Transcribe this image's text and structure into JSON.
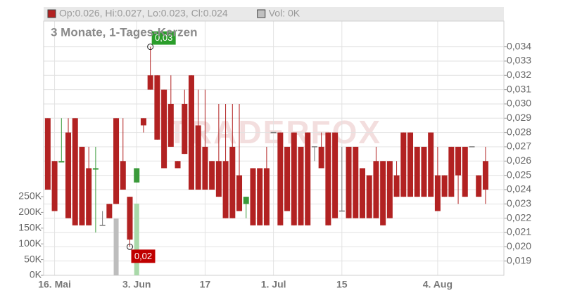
{
  "chart_data": {
    "type": "candlestick",
    "title": "3 Monate, 1-Tages-Kerzen",
    "watermark": "TRADERFOX",
    "legend": [
      {
        "label": "Op:0.026, Hi:0.027, Lo:0.023, Cl:0.024",
        "color": "#b22222"
      },
      {
        "label": "Vol: 0K",
        "color": "#c0c0c0"
      }
    ],
    "up_color": "#3a9a3a",
    "down_color": "#b22222",
    "flat_color": "#777777",
    "volume_up_color": "#a9d9a9",
    "volume_down_color": "#bdbdbd",
    "categories": [
      null,
      "16. Mai",
      null,
      null,
      null,
      null,
      null,
      null,
      null,
      null,
      null,
      null,
      null,
      "3. Jun",
      null,
      null,
      null,
      null,
      null,
      null,
      null,
      null,
      null,
      "17",
      null,
      null,
      null,
      null,
      null,
      null,
      null,
      null,
      null,
      "1. Jul",
      null,
      null,
      null,
      null,
      null,
      null,
      null,
      null,
      null,
      "15",
      null,
      null,
      null,
      null,
      null,
      null,
      null,
      null,
      null,
      null,
      null,
      null,
      null,
      "4. Aug",
      null,
      null,
      null,
      null,
      null,
      null,
      null
    ],
    "open": [
      0.029,
      0.026,
      0.0259,
      0.028,
      0.029,
      0.027,
      0.0255,
      0.0254,
      0.0215,
      0.023,
      0.029,
      0.026,
      0.0235,
      0.0245,
      0.029,
      0.032,
      0.032,
      0.031,
      0.03,
      0.026,
      0.03,
      0.032,
      0.0285,
      0.027,
      0.026,
      0.026,
      0.026,
      0.027,
      0.025,
      0.023,
      0.0255,
      0.0255,
      0.0255,
      0.028,
      0.028,
      0.027,
      0.028,
      0.027,
      0.028,
      0.027,
      0.027,
      0.028,
      0.028,
      0.0225,
      0.027,
      0.027,
      0.0255,
      0.025,
      0.026,
      0.026,
      0.026,
      0.025,
      0.028,
      0.028,
      0.027,
      0.027,
      0.028,
      0.025,
      0.025,
      0.027,
      0.027,
      0.027,
      0.027,
      0.025,
      0.026
    ],
    "high": [
      0.029,
      0.026,
      0.029,
      0.029,
      0.029,
      0.027,
      0.027,
      0.027,
      0.0225,
      0.023,
      0.029,
      0.029,
      0.0235,
      0.0255,
      0.029,
      0.034,
      0.032,
      0.031,
      0.032,
      0.026,
      0.031,
      0.032,
      0.031,
      0.031,
      0.026,
      0.03,
      0.03,
      0.03,
      0.03,
      0.0235,
      0.0255,
      0.0255,
      0.027,
      0.028,
      0.028,
      0.027,
      0.028,
      0.027,
      0.028,
      0.027,
      0.028,
      0.028,
      0.028,
      0.027,
      0.027,
      0.027,
      0.0255,
      0.025,
      0.027,
      0.026,
      0.026,
      0.026,
      0.028,
      0.028,
      0.027,
      0.027,
      0.028,
      0.027,
      0.025,
      0.027,
      0.027,
      0.027,
      0.027,
      0.025,
      0.027
    ],
    "low": [
      0.024,
      0.0225,
      0.026,
      0.022,
      0.0215,
      0.0215,
      0.0215,
      0.021,
      0.0215,
      0.022,
      0.023,
      0.024,
      0.02,
      0.0245,
      0.028,
      0.031,
      0.0275,
      0.0255,
      0.027,
      0.0255,
      0.0265,
      0.024,
      0.024,
      0.024,
      0.024,
      0.0235,
      0.022,
      0.022,
      0.0225,
      0.022,
      0.0215,
      0.0215,
      0.0215,
      0.028,
      0.0215,
      0.0225,
      0.0215,
      0.0215,
      0.0215,
      0.026,
      0.0255,
      0.0215,
      0.022,
      0.0225,
      0.022,
      0.022,
      0.022,
      0.022,
      0.022,
      0.0215,
      0.022,
      0.0235,
      0.0235,
      0.0235,
      0.0235,
      0.0235,
      0.0235,
      0.0225,
      0.0235,
      0.0235,
      0.023,
      0.0235,
      0.027,
      0.0235,
      0.023
    ],
    "close": [
      0.024,
      0.0225,
      0.026,
      0.022,
      0.0215,
      0.0215,
      0.0215,
      0.0255,
      0.0215,
      0.022,
      0.023,
      0.024,
      0.0205,
      0.0255,
      0.0285,
      0.031,
      0.0275,
      0.0255,
      0.027,
      0.0255,
      0.0265,
      0.024,
      0.024,
      0.024,
      0.024,
      0.0235,
      0.022,
      0.022,
      0.0225,
      0.0235,
      0.0215,
      0.0215,
      0.0215,
      0.028,
      0.0215,
      0.0225,
      0.0215,
      0.0215,
      0.0215,
      0.027,
      0.0255,
      0.0215,
      0.022,
      0.0225,
      0.022,
      0.022,
      0.022,
      0.022,
      0.022,
      0.0215,
      0.022,
      0.0235,
      0.0235,
      0.0235,
      0.0235,
      0.0235,
      0.0235,
      0.0225,
      0.0235,
      0.0235,
      0.025,
      0.0235,
      0.027,
      0.0235,
      0.024
    ],
    "volume": [
      0,
      0,
      0,
      0,
      0,
      0,
      0,
      0,
      0,
      0,
      180000,
      0,
      0,
      228000,
      0,
      0,
      0,
      0,
      0,
      0,
      0,
      0,
      0,
      0,
      0,
      0,
      0,
      0,
      0,
      0,
      0,
      0,
      0,
      0,
      0,
      0,
      0,
      0,
      0,
      0,
      0,
      0,
      0,
      0,
      0,
      0,
      0,
      0,
      0,
      0,
      0,
      0,
      0,
      0,
      0,
      0,
      0,
      0,
      0,
      0,
      0,
      0,
      0,
      0,
      0
    ],
    "ylim": [
      0.018,
      0.0358
    ],
    "yticks": [
      {
        "value": 0.019,
        "label": "0,019"
      },
      {
        "value": 0.02,
        "label": "0,020"
      },
      {
        "value": 0.021,
        "label": "0,021"
      },
      {
        "value": 0.022,
        "label": "0,022"
      },
      {
        "value": 0.023,
        "label": "0,023"
      },
      {
        "value": 0.024,
        "label": "0,024"
      },
      {
        "value": 0.025,
        "label": "0,025"
      },
      {
        "value": 0.026,
        "label": "0,026"
      },
      {
        "value": 0.027,
        "label": "0,027"
      },
      {
        "value": 0.028,
        "label": "0,028"
      },
      {
        "value": 0.029,
        "label": "0,029"
      },
      {
        "value": 0.03,
        "label": "0,030"
      },
      {
        "value": 0.031,
        "label": "0,031"
      },
      {
        "value": 0.032,
        "label": "0,032"
      },
      {
        "value": 0.033,
        "label": "0,033"
      },
      {
        "value": 0.034,
        "label": "0,034"
      }
    ],
    "y2lim": [
      0,
      808000
    ],
    "y2ticks": [
      {
        "value": 0,
        "label": "0K"
      },
      {
        "value": 50000,
        "label": "50K"
      },
      {
        "value": 100000,
        "label": "100K"
      },
      {
        "value": 150000,
        "label": "150K"
      },
      {
        "value": 200000,
        "label": "200K"
      },
      {
        "value": 250000,
        "label": "250K"
      }
    ],
    "annotations": [
      {
        "label": "0,03",
        "value": 0.034,
        "kind": "high",
        "color": "#2a9d2a"
      },
      {
        "label": "0,02",
        "value": 0.02,
        "kind": "low",
        "color": "#c00000"
      }
    ],
    "grid": true
  }
}
